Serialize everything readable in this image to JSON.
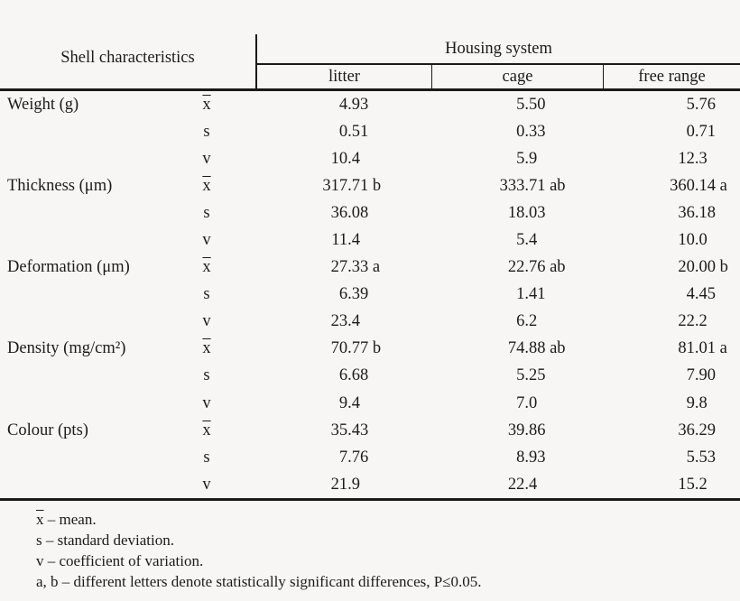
{
  "table": {
    "header": {
      "shell_col": "Shell characteristics",
      "group": "Housing system",
      "subcols": [
        "litter",
        "cage",
        "free range"
      ]
    },
    "rows": [
      {
        "label": "Weight (g)",
        "stat": "x̄",
        "values": [
          "4.93",
          "5.50",
          "5.76"
        ]
      },
      {
        "label": "",
        "stat": "s",
        "values": [
          "0.51",
          "0.33",
          "0.71"
        ]
      },
      {
        "label": "",
        "stat": "v",
        "values": [
          "10.4",
          "5.9",
          "12.3"
        ]
      },
      {
        "label": "Thickness (μm)",
        "stat": "x̄",
        "values": [
          "317.71 b",
          "333.71 ab",
          "360.14 a"
        ]
      },
      {
        "label": "",
        "stat": "s",
        "values": [
          "36.08",
          "18.03",
          "36.18"
        ]
      },
      {
        "label": "",
        "stat": "v",
        "values": [
          "11.4",
          "5.4",
          "10.0"
        ]
      },
      {
        "label": "Deformation (μm)",
        "stat": "x̄",
        "values": [
          "27.33 a",
          "22.76 ab",
          "20.00 b"
        ]
      },
      {
        "label": "",
        "stat": "s",
        "values": [
          "6.39",
          "1.41",
          "4.45"
        ]
      },
      {
        "label": "",
        "stat": "v",
        "values": [
          "23.4",
          "6.2",
          "22.2"
        ]
      },
      {
        "label": "Density (mg/cm²)",
        "stat": "x̄",
        "values": [
          "70.77 b",
          "74.88 ab",
          "81.01 a"
        ]
      },
      {
        "label": "",
        "stat": "s",
        "values": [
          "6.68",
          "5.25",
          "7.90"
        ]
      },
      {
        "label": "",
        "stat": "v",
        "values": [
          "9.4",
          "7.0",
          "9.8"
        ]
      },
      {
        "label": "Colour (pts)",
        "stat": "x̄",
        "values": [
          "35.43",
          "39.86",
          "36.29"
        ]
      },
      {
        "label": "",
        "stat": "s",
        "values": [
          "7.76",
          "8.93",
          "5.53"
        ]
      },
      {
        "label": "",
        "stat": "v",
        "values": [
          "21.9",
          "22.4",
          "15.2"
        ]
      }
    ],
    "footnotes": [
      "x̄ – mean.",
      "s – standard deviation.",
      "v – coefficient of variation.",
      "a, b – different letters denote statistically significant differences, P≤0.05."
    ]
  },
  "colors": {
    "background": "#f7f6f4",
    "text": "#1b1b1b",
    "rule": "#1a1a1a"
  }
}
